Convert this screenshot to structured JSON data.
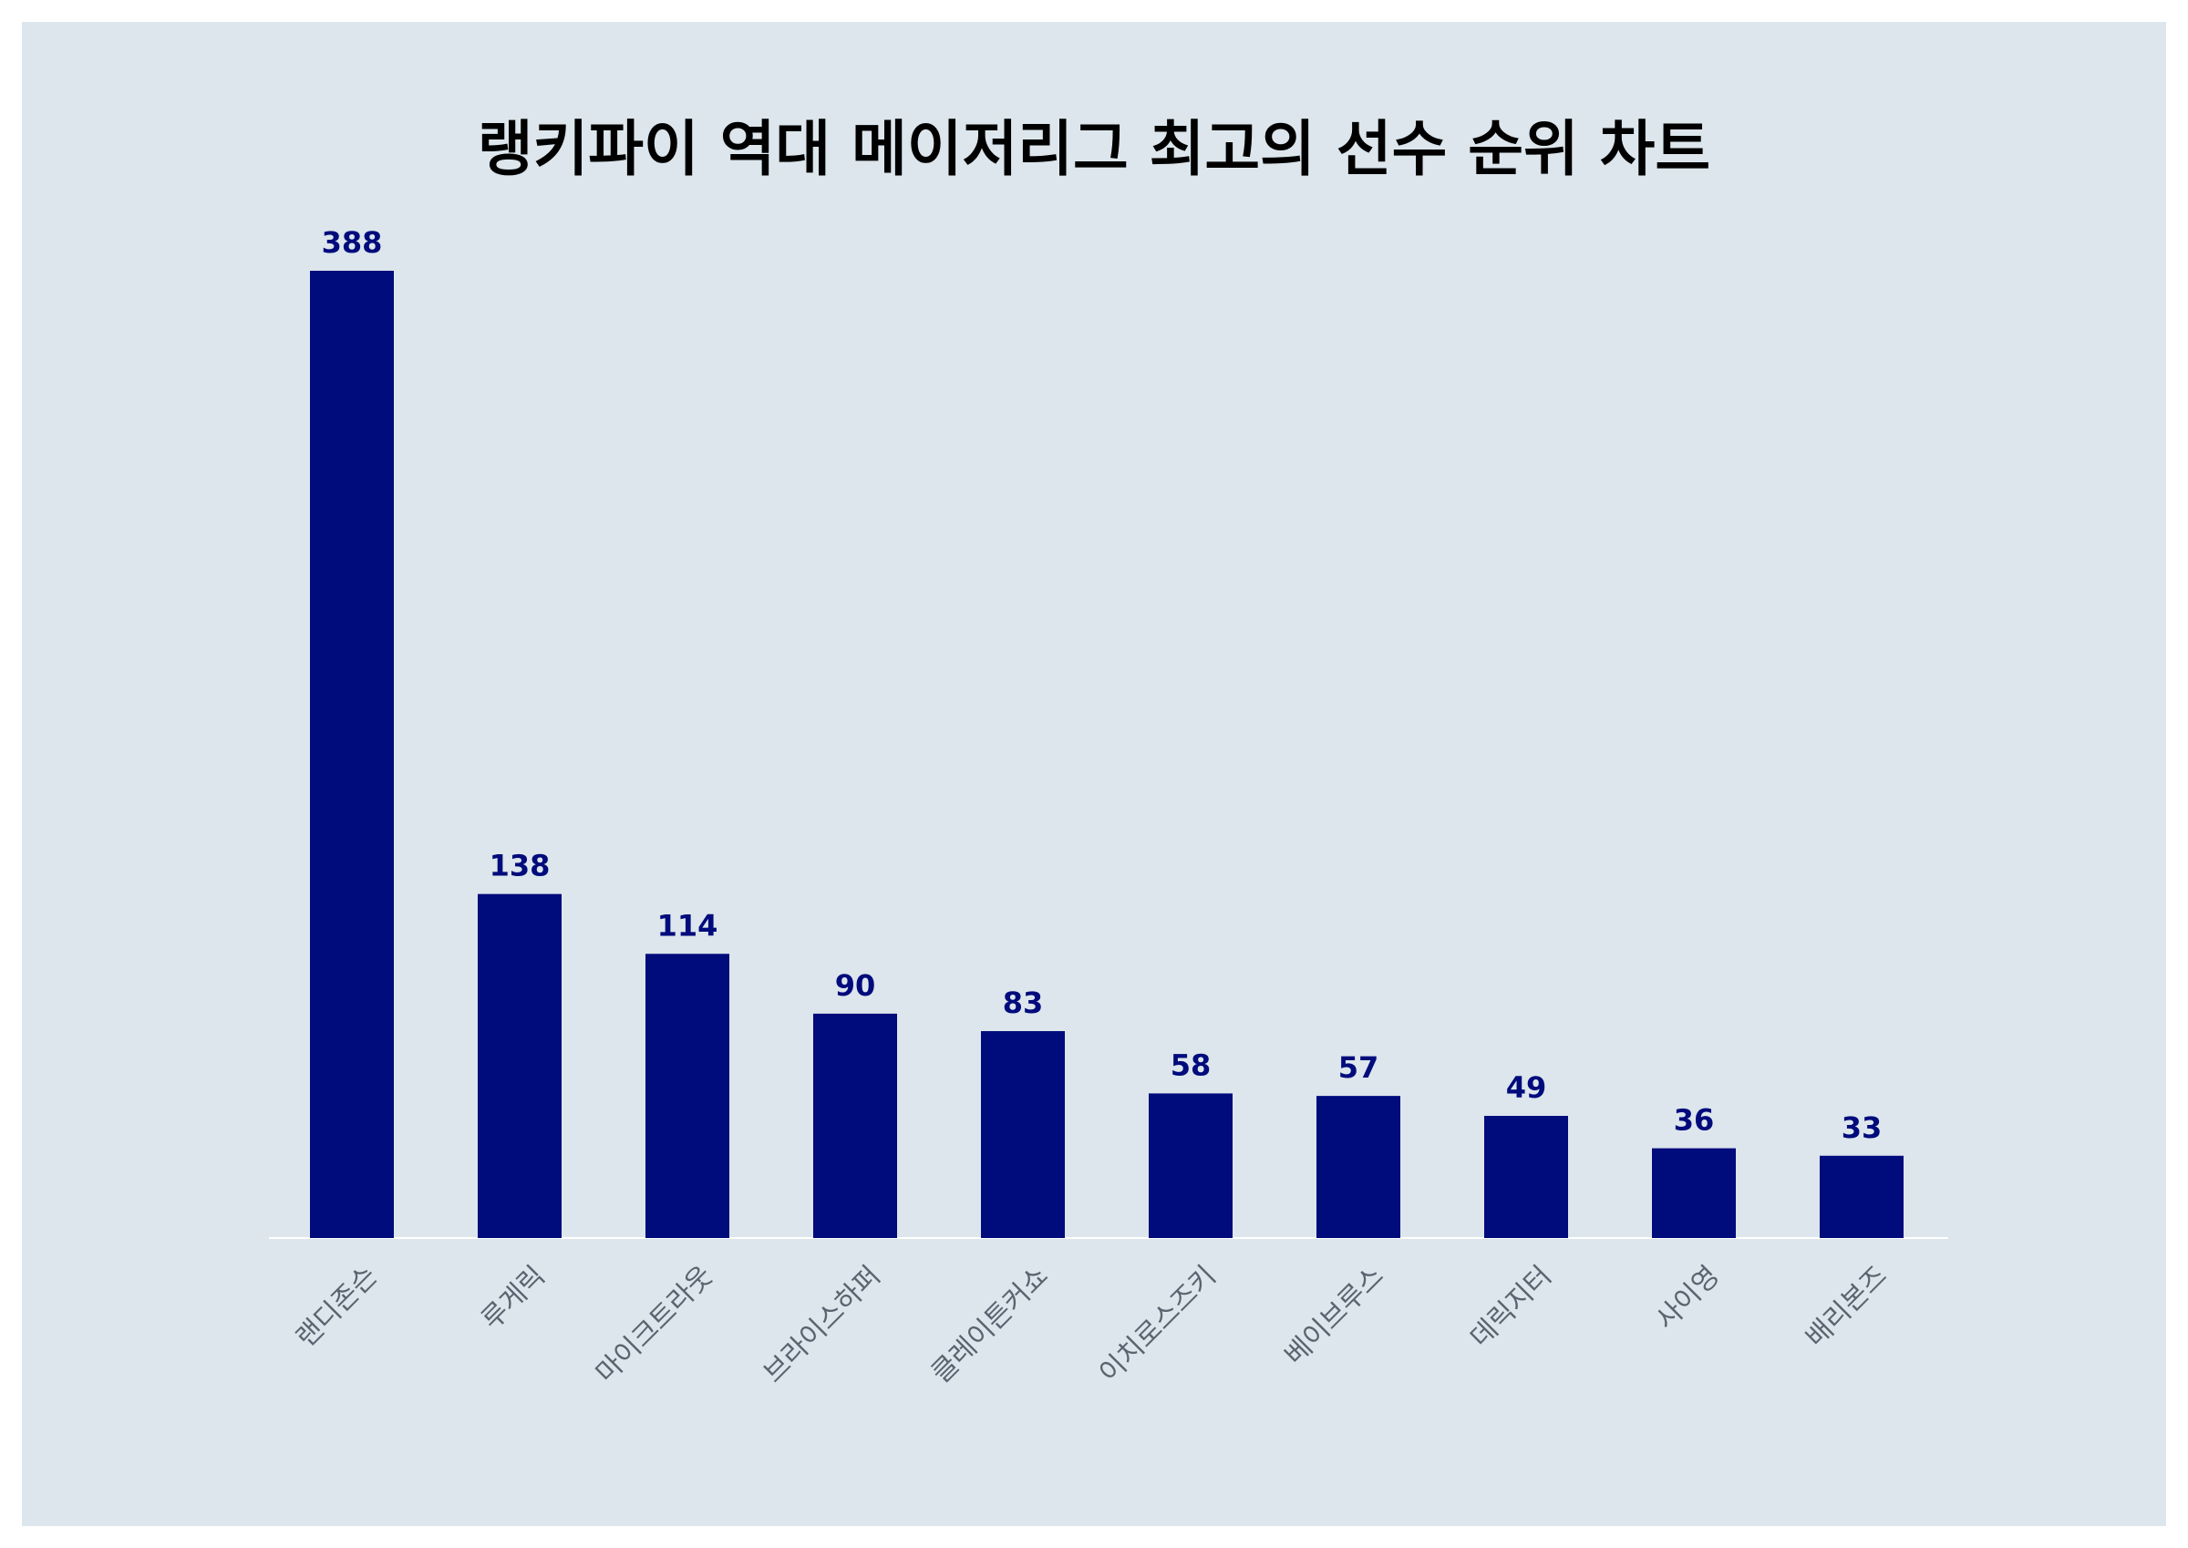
{
  "chart_data": {
    "type": "bar",
    "title": "랭키파이 역대 메이저리그 최고의 선수 순위 차트",
    "xlabel": "",
    "ylabel": "",
    "categories": [
      "랜디존슨",
      "루게릭",
      "마이크트라웃",
      "브라이스하퍼",
      "클레이튼커쇼",
      "이치로스즈키",
      "베이브루스",
      "데릭지터",
      "사이영",
      "배리본즈"
    ],
    "values": [
      388,
      138,
      114,
      90,
      83,
      58,
      57,
      49,
      36,
      33
    ],
    "ylim": [
      0,
      388
    ],
    "grid": false,
    "legend": "none",
    "colors": {
      "bar": "#000b7c",
      "value_label": "#000b7c",
      "tick_label": "#5a6470",
      "baseline": "#ffffff",
      "background": "#dce6ec",
      "title": "#000000"
    }
  }
}
